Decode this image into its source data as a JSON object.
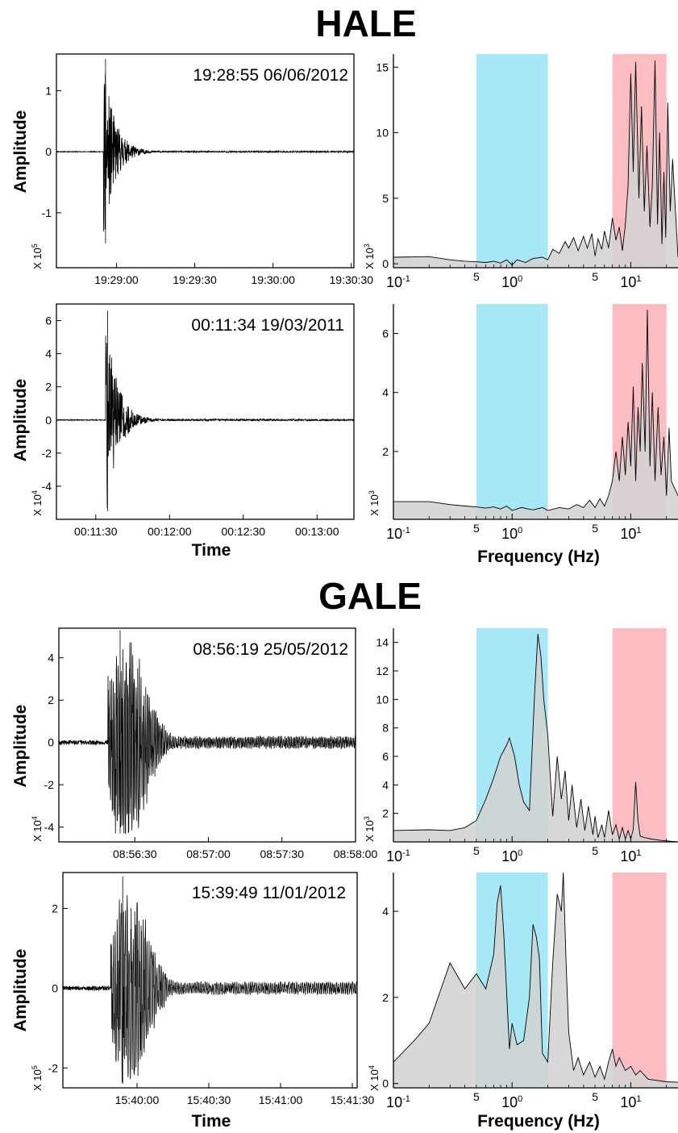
{
  "sections": [
    {
      "title": "HALE",
      "rows": [
        {
          "timestamp": "19:28:55  06/06/2012",
          "ylabel": "Amplitude",
          "ymult_base": "X 10",
          "ymult_exp": "5",
          "xlabel": "",
          "freq_mult_base": "X 10",
          "freq_mult_exp": "3",
          "freq_xlabel": ""
        },
        {
          "timestamp": "00:11:34  19/03/2011",
          "ylabel": "Amplitude",
          "ymult_base": "X 10",
          "ymult_exp": "4",
          "xlabel": "Time",
          "freq_mult_base": "X 10",
          "freq_mult_exp": "3",
          "freq_xlabel": "Frequency (Hz)"
        }
      ]
    },
    {
      "title": "GALE",
      "rows": [
        {
          "timestamp": "08:56:19  25/05/2012",
          "ylabel": "Amplitude",
          "ymult_base": "X 10",
          "ymult_exp": "4",
          "xlabel": "",
          "freq_mult_base": "X 10",
          "freq_mult_exp": "3",
          "freq_xlabel": ""
        },
        {
          "timestamp": "15:39:49  11/01/2012",
          "ylabel": "Amplitude",
          "ymult_base": "X 10",
          "ymult_exp": "5",
          "xlabel": "Time",
          "freq_mult_base": "X 10",
          "freq_mult_exp": "4",
          "freq_xlabel": "Frequency (Hz)"
        }
      ]
    }
  ],
  "colors": {
    "low_band": "#a6e8f7",
    "high_band": "#fbbcc2",
    "spectrum_fill": "#d3d3d3",
    "line": "#000000"
  },
  "chart_data": [
    {
      "type": "line",
      "panel": "HALE waveform 19:28:55 06/06/2012",
      "x_ticks": [
        "19:29:00",
        "19:29:30",
        "19:30:00",
        "19:30:30"
      ],
      "x_tick_values_s": [
        5,
        35,
        65,
        95
      ],
      "xlim_s": [
        -18,
        96
      ],
      "y_ticks": [
        "-1",
        "0",
        "1"
      ],
      "y_tick_values": [
        -1,
        0,
        1
      ],
      "ylim": [
        -1.9,
        1.6
      ],
      "y_multiplier": "X 10^5",
      "onset_s": 0,
      "peak_positive": 1.52,
      "peak_negative": -1.5,
      "decay_seconds": 15
    },
    {
      "type": "area",
      "panel": "HALE spectrum 06/06/2012",
      "xscale": "log",
      "xlim": [
        0.1,
        25
      ],
      "x_ticks": [
        "10-1",
        "5",
        "100",
        "5",
        "101"
      ],
      "y_ticks": [
        "0",
        "5",
        "10",
        "15"
      ],
      "ylim": [
        -0.3,
        16
      ],
      "y_multiplier": "X 10^3",
      "low_band_hz": [
        0.5,
        2
      ],
      "high_band_hz": [
        7,
        20
      ],
      "points": [
        [
          0.1,
          0.5
        ],
        [
          0.2,
          0.55
        ],
        [
          0.3,
          0.3
        ],
        [
          0.4,
          0.2
        ],
        [
          0.5,
          0.15
        ],
        [
          0.6,
          0.1
        ],
        [
          0.7,
          0.2
        ],
        [
          0.8,
          0.05
        ],
        [
          0.9,
          0.3
        ],
        [
          1.0,
          -0.1
        ],
        [
          1.1,
          0.3
        ],
        [
          1.3,
          0.1
        ],
        [
          1.5,
          0.4
        ],
        [
          1.8,
          0.5
        ],
        [
          2.0,
          0.3
        ],
        [
          2.2,
          1.1
        ],
        [
          2.5,
          0.8
        ],
        [
          2.8,
          1.7
        ],
        [
          3.0,
          1.2
        ],
        [
          3.3,
          2.0
        ],
        [
          3.6,
          1.0
        ],
        [
          4.0,
          2.1
        ],
        [
          4.3,
          1.2
        ],
        [
          4.7,
          2.3
        ],
        [
          5.0,
          0.6
        ],
        [
          5.3,
          1.9
        ],
        [
          5.7,
          1.1
        ],
        [
          6.0,
          2.5
        ],
        [
          6.5,
          1.2
        ],
        [
          7.0,
          3.5
        ],
        [
          7.5,
          1.8
        ],
        [
          8.0,
          2.8
        ],
        [
          8.5,
          1.0
        ],
        [
          9.0,
          3.0
        ],
        [
          9.5,
          6.0
        ],
        [
          10.0,
          14.5
        ],
        [
          10.5,
          7.0
        ],
        [
          11.0,
          15.4
        ],
        [
          11.7,
          5.0
        ],
        [
          12.3,
          12.0
        ],
        [
          13.0,
          4.0
        ],
        [
          13.7,
          9.0
        ],
        [
          14.5,
          2.8
        ],
        [
          15.2,
          6.0
        ],
        [
          16.0,
          15.5
        ],
        [
          16.8,
          3.0
        ],
        [
          17.5,
          10.0
        ],
        [
          18.3,
          1.5
        ],
        [
          19.0,
          7.0
        ],
        [
          19.7,
          2.0
        ],
        [
          20.5,
          12.3
        ],
        [
          21.5,
          4.0
        ],
        [
          22.5,
          8.0
        ],
        [
          25.0,
          0.5
        ]
      ]
    },
    {
      "type": "line",
      "panel": "HALE waveform 00:11:34 19/03/2011",
      "x_ticks": [
        "00:11:30",
        "00:12:00",
        "00:12:30",
        "00:13:00"
      ],
      "x_tick_values_s": [
        -4,
        26,
        56,
        86
      ],
      "xlim_s": [
        -20,
        101
      ],
      "y_ticks": [
        "-4",
        "-2",
        "0",
        "2",
        "4",
        "6"
      ],
      "y_tick_values": [
        -4,
        -2,
        0,
        2,
        4,
        6
      ],
      "ylim": [
        -6.0,
        7.0
      ],
      "y_multiplier": "X 10^4",
      "onset_s": 0,
      "peak_positive": 6.6,
      "peak_negative": -5.5,
      "decay_seconds": 16
    },
    {
      "type": "area",
      "panel": "HALE spectrum 19/03/2011",
      "xscale": "log",
      "xlim": [
        0.1,
        25
      ],
      "x_ticks": [
        "10-1",
        "5",
        "100",
        "5",
        "101"
      ],
      "y_ticks": [
        "2",
        "4",
        "6"
      ],
      "ylim": [
        -0.3,
        7
      ],
      "y_multiplier": "X 10^3",
      "low_band_hz": [
        0.5,
        2
      ],
      "high_band_hz": [
        7,
        20
      ],
      "points": [
        [
          0.1,
          0.3
        ],
        [
          0.2,
          0.3
        ],
        [
          0.3,
          0.2
        ],
        [
          0.4,
          0.15
        ],
        [
          0.5,
          0.12
        ],
        [
          0.6,
          0.08
        ],
        [
          0.7,
          0.12
        ],
        [
          0.8,
          0.05
        ],
        [
          0.9,
          0.15
        ],
        [
          1.0,
          0.0
        ],
        [
          1.2,
          0.1
        ],
        [
          1.5,
          0.02
        ],
        [
          1.8,
          0.1
        ],
        [
          2.0,
          0.0
        ],
        [
          2.5,
          0.1
        ],
        [
          3.0,
          0.05
        ],
        [
          3.5,
          0.2
        ],
        [
          4.0,
          0.1
        ],
        [
          4.5,
          0.35
        ],
        [
          5.0,
          0.1
        ],
        [
          5.5,
          0.4
        ],
        [
          6.0,
          0.15
        ],
        [
          6.5,
          0.5
        ],
        [
          7.0,
          1.0
        ],
        [
          7.5,
          2.0
        ],
        [
          8.0,
          1.0
        ],
        [
          8.5,
          2.5
        ],
        [
          9.0,
          1.2
        ],
        [
          9.5,
          3.0
        ],
        [
          10.0,
          1.5
        ],
        [
          10.5,
          4.2
        ],
        [
          11.0,
          1.0
        ],
        [
          11.5,
          3.5
        ],
        [
          12.0,
          2.0
        ],
        [
          12.5,
          5.0
        ],
        [
          13.2,
          2.0
        ],
        [
          13.8,
          6.8
        ],
        [
          14.5,
          1.5
        ],
        [
          15.2,
          4.0
        ],
        [
          16.0,
          1.0
        ],
        [
          17.0,
          3.5
        ],
        [
          18.0,
          1.2
        ],
        [
          19.0,
          2.5
        ],
        [
          20.0,
          0.5
        ],
        [
          21.0,
          2.8
        ],
        [
          22.0,
          1.0
        ],
        [
          25.0,
          0.5
        ]
      ]
    },
    {
      "type": "line",
      "panel": "GALE waveform 08:56:19 25/05/2012",
      "x_ticks": [
        "08:56:30",
        "08:57:00",
        "08:57:30",
        "08:58:00"
      ],
      "x_tick_values_s": [
        11,
        41,
        71,
        101
      ],
      "xlim_s": [
        -20,
        101
      ],
      "y_ticks": [
        "-4",
        "-2",
        "0",
        "2",
        "4"
      ],
      "y_tick_values": [
        -4,
        -2,
        0,
        2,
        4
      ],
      "ylim": [
        -4.7,
        5.4
      ],
      "y_multiplier": "X 10^4",
      "onset_s": 0,
      "peak_positive": 5.3,
      "peak_negative": -4.3,
      "decay_seconds": 45,
      "oscillation_hz": 1.5
    },
    {
      "type": "area",
      "panel": "GALE spectrum 25/05/2012",
      "xscale": "log",
      "xlim": [
        0.1,
        25
      ],
      "x_ticks": [
        "10-1",
        "5",
        "100",
        "5",
        "101"
      ],
      "y_ticks": [
        "2",
        "4",
        "6",
        "8",
        "10",
        "12",
        "14"
      ],
      "ylim": [
        0,
        15
      ],
      "y_multiplier": "X 10^3",
      "low_band_hz": [
        0.5,
        2
      ],
      "high_band_hz": [
        7,
        20
      ],
      "points": [
        [
          0.1,
          0.8
        ],
        [
          0.2,
          0.85
        ],
        [
          0.3,
          0.8
        ],
        [
          0.4,
          1.0
        ],
        [
          0.5,
          1.5
        ],
        [
          0.6,
          3.0
        ],
        [
          0.7,
          4.5
        ],
        [
          0.8,
          6.0
        ],
        [
          0.9,
          6.8
        ],
        [
          0.95,
          7.3
        ],
        [
          1.05,
          6.0
        ],
        [
          1.15,
          4.0
        ],
        [
          1.25,
          2.8
        ],
        [
          1.4,
          2.2
        ],
        [
          1.55,
          10.5
        ],
        [
          1.65,
          14.6
        ],
        [
          1.75,
          13.0
        ],
        [
          1.85,
          10.0
        ],
        [
          2.0,
          7.5
        ],
        [
          2.2,
          1.8
        ],
        [
          2.4,
          6.0
        ],
        [
          2.6,
          3.0
        ],
        [
          2.8,
          5.0
        ],
        [
          3.0,
          1.5
        ],
        [
          3.2,
          4.0
        ],
        [
          3.5,
          1.0
        ],
        [
          3.8,
          3.0
        ],
        [
          4.1,
          0.8
        ],
        [
          4.4,
          2.5
        ],
        [
          4.8,
          0.5
        ],
        [
          5.0,
          1.8
        ],
        [
          5.3,
          0.3
        ],
        [
          5.7,
          1.2
        ],
        [
          6.0,
          0.3
        ],
        [
          6.5,
          2.2
        ],
        [
          7.0,
          0.5
        ],
        [
          7.5,
          1.2
        ],
        [
          8.0,
          0.2
        ],
        [
          8.5,
          1.0
        ],
        [
          9.0,
          0.2
        ],
        [
          9.5,
          0.8
        ],
        [
          10.0,
          0.2
        ],
        [
          10.5,
          0.9
        ],
        [
          11.0,
          4.2
        ],
        [
          11.5,
          1.5
        ],
        [
          12.0,
          0.4
        ],
        [
          13.0,
          0.3
        ],
        [
          15.0,
          0.2
        ],
        [
          18.0,
          0.1
        ],
        [
          25.0,
          0.0
        ]
      ]
    },
    {
      "type": "line",
      "panel": "GALE waveform 15:39:49 11/01/2012",
      "x_ticks": [
        "15:40:00",
        "15:40:30",
        "15:41:00",
        "15:41:30"
      ],
      "x_tick_values_s": [
        11,
        41,
        71,
        101
      ],
      "xlim_s": [
        -20,
        103
      ],
      "y_ticks": [
        "-2",
        "0",
        "2"
      ],
      "y_tick_values": [
        -2,
        0,
        2
      ],
      "ylim": [
        -2.5,
        2.9
      ],
      "y_multiplier": "X 10^5",
      "onset_s": 0,
      "peak_positive": 2.8,
      "peak_negative": -2.4,
      "decay_seconds": 40,
      "oscillation_hz": 1.2
    },
    {
      "type": "area",
      "panel": "GALE spectrum 11/01/2012",
      "xscale": "log",
      "xlim": [
        0.1,
        25
      ],
      "x_ticks": [
        "10-1",
        "5",
        "100",
        "5",
        "101"
      ],
      "y_ticks": [
        "0",
        "2",
        "4"
      ],
      "ylim": [
        -0.1,
        4.9
      ],
      "y_multiplier": "X 10^4",
      "low_band_hz": [
        0.5,
        2
      ],
      "high_band_hz": [
        7,
        20
      ],
      "points": [
        [
          0.1,
          0.5
        ],
        [
          0.15,
          1.0
        ],
        [
          0.2,
          1.4
        ],
        [
          0.3,
          2.8
        ],
        [
          0.4,
          2.2
        ],
        [
          0.5,
          2.55
        ],
        [
          0.6,
          2.2
        ],
        [
          0.7,
          3.0
        ],
        [
          0.75,
          4.2
        ],
        [
          0.8,
          4.6
        ],
        [
          0.85,
          3.5
        ],
        [
          0.95,
          0.8
        ],
        [
          1.0,
          1.4
        ],
        [
          1.1,
          0.9
        ],
        [
          1.25,
          1.0
        ],
        [
          1.4,
          2.0
        ],
        [
          1.5,
          3.7
        ],
        [
          1.6,
          3.4
        ],
        [
          1.7,
          2.9
        ],
        [
          1.8,
          0.7
        ],
        [
          2.0,
          0.5
        ],
        [
          2.2,
          2.8
        ],
        [
          2.4,
          4.4
        ],
        [
          2.6,
          4.0
        ],
        [
          2.7,
          4.9
        ],
        [
          2.85,
          2.8
        ],
        [
          3.0,
          1.2
        ],
        [
          3.3,
          0.3
        ],
        [
          3.6,
          0.6
        ],
        [
          4.0,
          0.2
        ],
        [
          4.5,
          0.5
        ],
        [
          5.0,
          0.15
        ],
        [
          5.5,
          0.4
        ],
        [
          6.0,
          0.1
        ],
        [
          6.5,
          0.5
        ],
        [
          7.0,
          0.8
        ],
        [
          7.5,
          0.4
        ],
        [
          8.0,
          0.6
        ],
        [
          9.0,
          0.3
        ],
        [
          10.0,
          0.4
        ],
        [
          11.0,
          0.2
        ],
        [
          12.0,
          0.3
        ],
        [
          14.0,
          0.1
        ],
        [
          16.0,
          0.08
        ],
        [
          20.0,
          0.04
        ],
        [
          25.0,
          0.03
        ]
      ]
    }
  ]
}
